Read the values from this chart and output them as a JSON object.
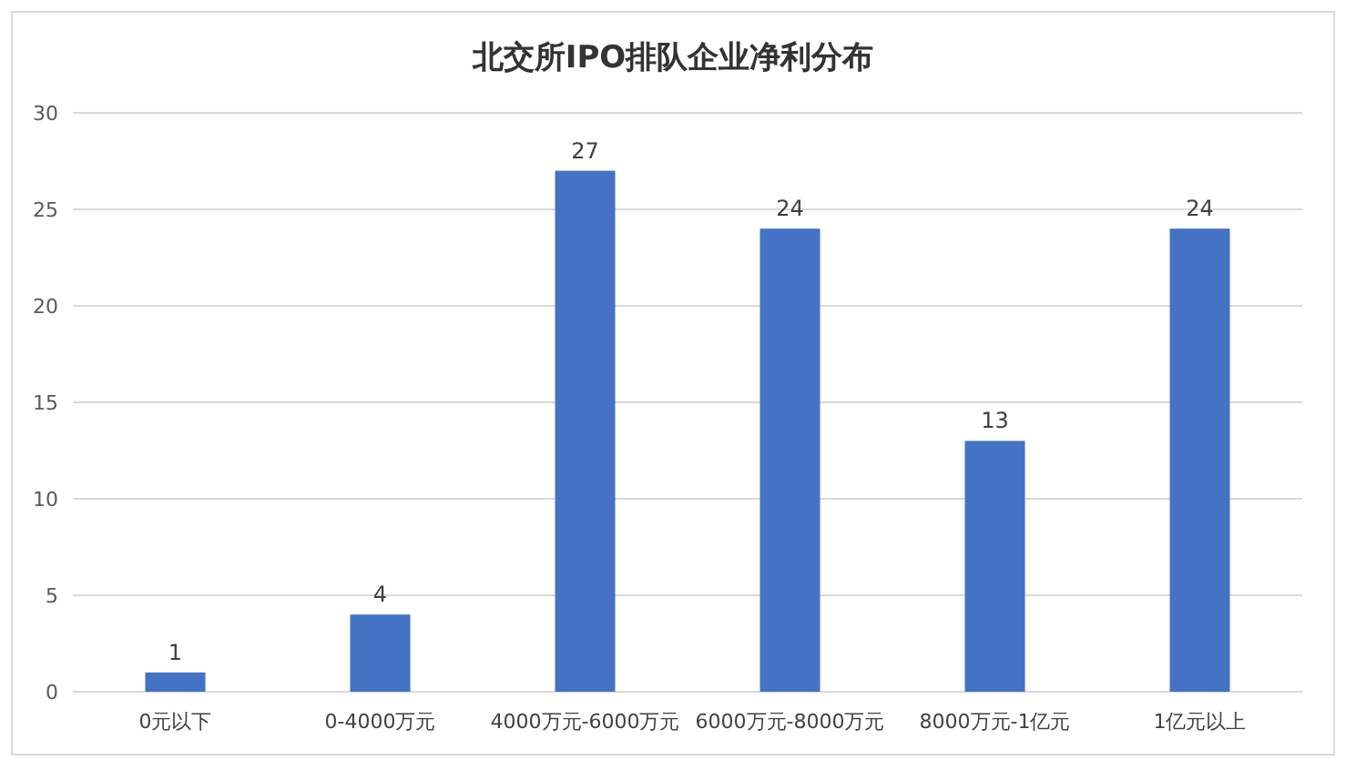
{
  "chart_data": {
    "type": "bar",
    "title": "北交所IPO排队企业净利分布",
    "categories": [
      "0元以下",
      "0-4000万元",
      "4000万元-6000万元",
      "6000万元-8000万元",
      "8000万元-1亿元",
      "1亿元以上"
    ],
    "values": [
      1,
      4,
      27,
      24,
      13,
      24
    ],
    "color": "#4472c4",
    "ylim": [
      0,
      30
    ],
    "yticks": [
      0,
      5,
      10,
      15,
      20,
      25,
      30
    ],
    "grid": "y",
    "data_labels": true
  }
}
